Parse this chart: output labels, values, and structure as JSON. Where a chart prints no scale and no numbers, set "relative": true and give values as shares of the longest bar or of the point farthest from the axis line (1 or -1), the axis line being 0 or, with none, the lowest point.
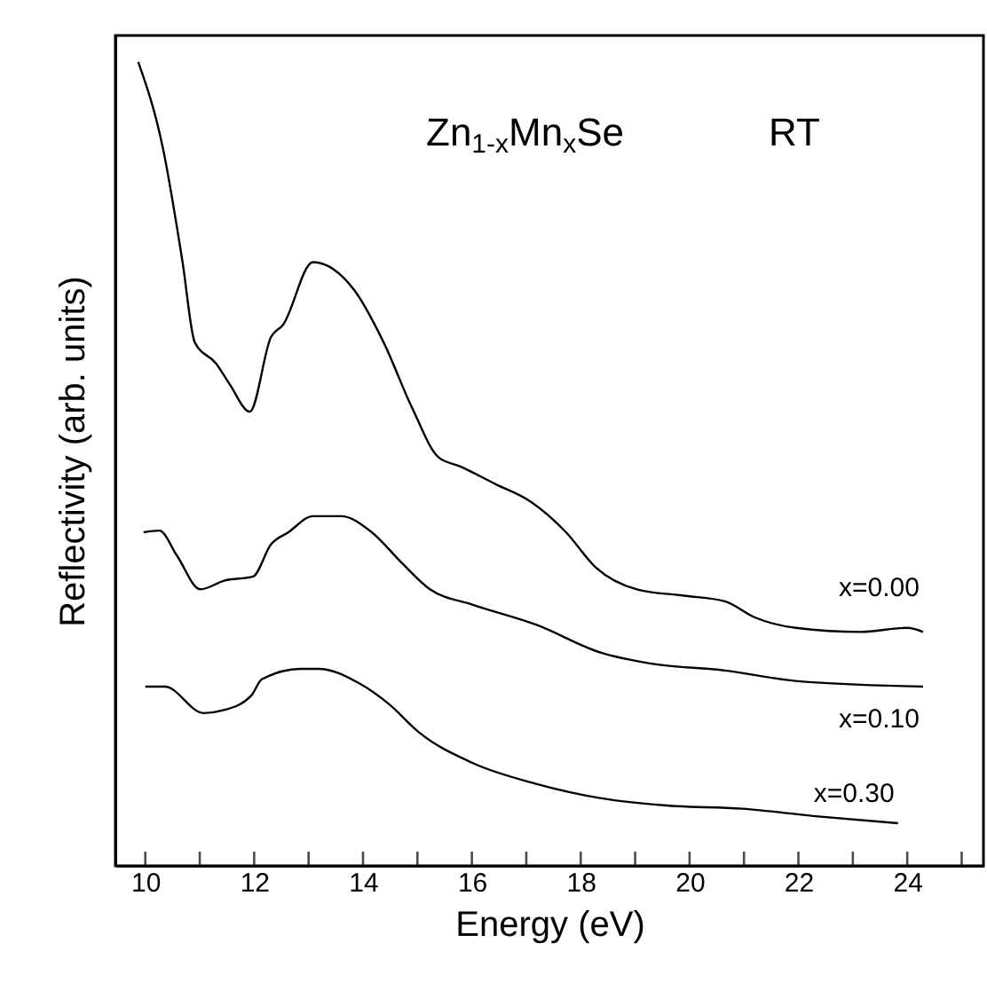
{
  "chart_data": {
    "type": "line",
    "relative": true,
    "xlabel": "Energy (eV)",
    "ylabel": "Reflectivity (arb. units)",
    "xlim": [
      9.45,
      25.4
    ],
    "xticks": [
      10,
      12,
      14,
      16,
      18,
      20,
      22,
      24,
      {
        "value": 11,
        "label": null
      },
      {
        "value": 13,
        "label": null
      },
      {
        "value": 15,
        "label": null
      },
      {
        "value": 17,
        "label": null
      },
      {
        "value": 19,
        "label": null
      },
      {
        "value": 21,
        "label": null
      },
      {
        "value": 23,
        "label": null
      },
      {
        "value": 25,
        "label": null
      }
    ],
    "tick_labels": "x",
    "grid": false,
    "legend": false,
    "line_style": "solid",
    "marker": "none",
    "annotations": [
      "Zn$_{1-x}$Mn$_{x}$Se",
      "RT"
    ],
    "series": [
      {
        "name": "x=0.00",
        "color": "#000000",
        "x": [
          9.87,
          10.32,
          10.68,
          10.91,
          11.3,
          11.56,
          11.92,
          12.31,
          12.53,
          13.08,
          13.83,
          14.38,
          14.9,
          15.39,
          15.78,
          16.43,
          17.08,
          17.73,
          18.28,
          19.03,
          19.9,
          20.65,
          21.2,
          21.95,
          23.15,
          24.0,
          24.29
        ],
        "values": [
          1.0,
          0.894,
          0.753,
          0.651,
          0.625,
          0.598,
          0.565,
          0.658,
          0.673,
          0.751,
          0.717,
          0.651,
          0.57,
          0.508,
          0.497,
          0.475,
          0.453,
          0.415,
          0.371,
          0.344,
          0.336,
          0.329,
          0.309,
          0.296,
          0.291,
          0.296,
          0.291
        ]
      },
      {
        "name": "x=0.10",
        "color": "#000000",
        "x": [
          9.97,
          10.26,
          10.58,
          11.01,
          11.46,
          11.98,
          12.31,
          12.63,
          13.08,
          13.6,
          14.16,
          14.71,
          15.23,
          16.01,
          17.18,
          18.38,
          19.25,
          20.65,
          21.95,
          24.29
        ],
        "values": [
          0.415,
          0.417,
          0.386,
          0.344,
          0.355,
          0.36,
          0.4,
          0.415,
          0.435,
          0.435,
          0.415,
          0.377,
          0.344,
          0.325,
          0.3,
          0.265,
          0.252,
          0.243,
          0.23,
          0.223
        ]
      },
      {
        "name": "x=0.30",
        "color": "#000000",
        "x": [
          10.0,
          10.36,
          11.07,
          11.46,
          11.95,
          12.14,
          12.86,
          13.18,
          13.93,
          14.48,
          15.03,
          16.01,
          17.18,
          18.38,
          19.58,
          20.97,
          22.27,
          23.83
        ],
        "values": [
          0.223,
          0.223,
          0.19,
          0.194,
          0.212,
          0.232,
          0.245,
          0.245,
          0.227,
          0.201,
          0.166,
          0.128,
          0.102,
          0.084,
          0.075,
          0.071,
          0.062,
          0.053
        ]
      }
    ]
  }
}
